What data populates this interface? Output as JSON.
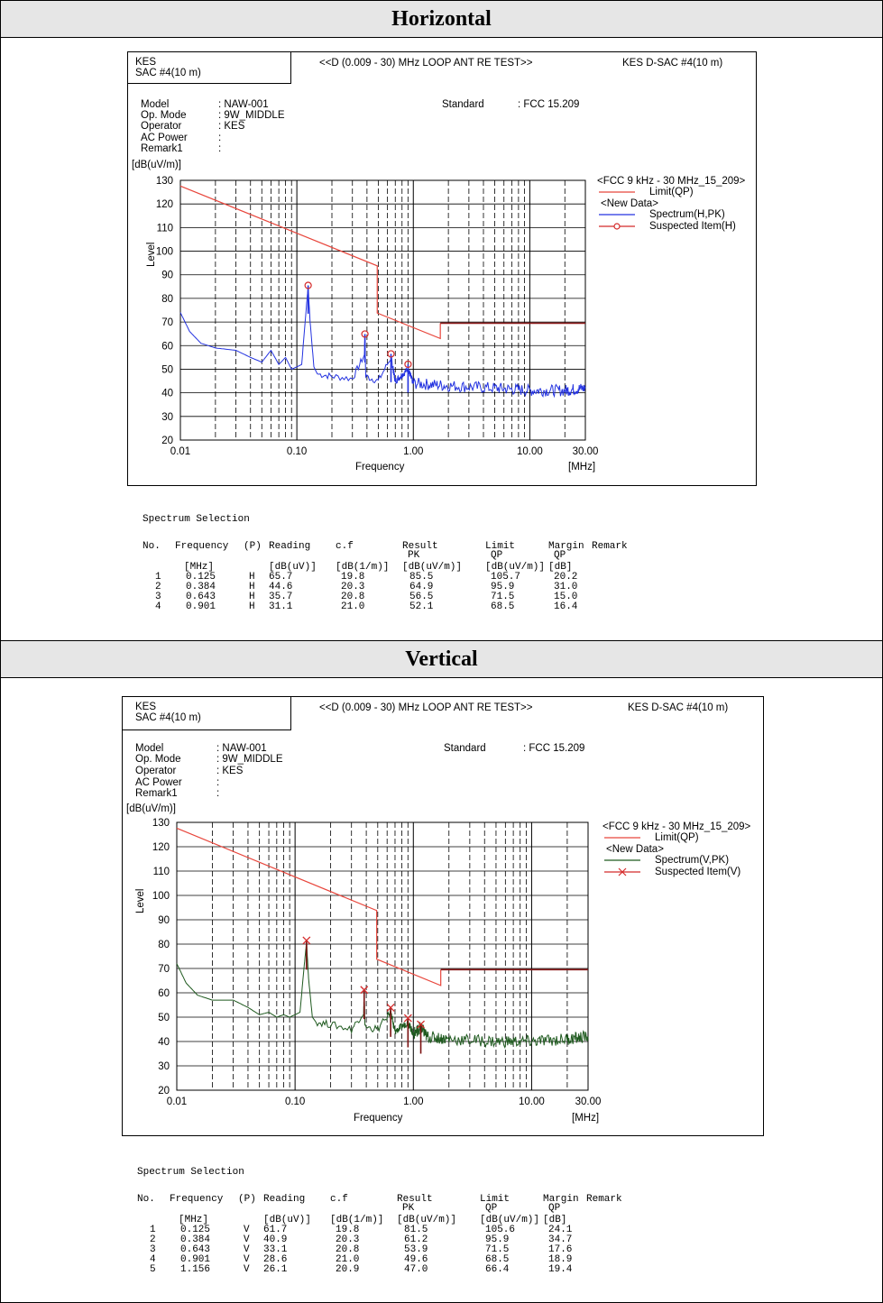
{
  "sections": [
    {
      "band_label": "Horizontal",
      "header": {
        "lab": "KES",
        "site": "SAC #4(10 m)",
        "test_title": "<<D (0.009 - 30) MHz LOOP ANT RE TEST>>",
        "right_label": "KES D-SAC #4(10 m)"
      },
      "info": {
        "model_label": "Model",
        "model_value": ": NAW-001",
        "mode_label": "Op. Mode",
        "mode_value": ": 9W_MIDDLE",
        "operator_label": "Operator",
        "operator_value": ": KES",
        "power_label": "AC Power",
        "power_value": ":",
        "remark_label": "Remark1",
        "remark_value": ":",
        "standard_label": "Standard",
        "standard_value": ": FCC 15.209"
      },
      "legend": {
        "group1": "<FCC 9 kHz - 30 MHz_15_209>",
        "limit": "Limit(QP)",
        "group2": "<New Data>",
        "spectrum": "Spectrum(H,PK)",
        "suspected": "Suspected Item(H)"
      },
      "table": {
        "title": "Spectrum Selection",
        "headers": [
          "No.",
          "Frequency",
          "(P)",
          "Reading",
          "c.f",
          "Result",
          "Limit",
          "Margin",
          "Remark"
        ],
        "subheaders": [
          "",
          "",
          "",
          "",
          "",
          "PK",
          "QP",
          "QP",
          ""
        ],
        "units": [
          "",
          "[MHz]",
          "",
          "[dB(uV)]",
          "[dB(1/m)]",
          "[dB(uV/m)]",
          "[dB(uV/m)]",
          "[dB]",
          ""
        ],
        "rows": [
          [
            "1",
            "0.125",
            "H",
            "65.7",
            "19.8",
            "85.5",
            "105.7",
            "20.2"
          ],
          [
            "2",
            "0.384",
            "H",
            "44.6",
            "20.3",
            "64.9",
            "95.9",
            "31.0"
          ],
          [
            "3",
            "0.643",
            "H",
            "35.7",
            "20.8",
            "56.5",
            "71.5",
            "15.0"
          ],
          [
            "4",
            "0.901",
            "H",
            "31.1",
            "21.0",
            "52.1",
            "68.5",
            "16.4"
          ]
        ]
      }
    },
    {
      "band_label": "Vertical",
      "header": {
        "lab": "KES",
        "site": "SAC #4(10 m)",
        "test_title": "<<D (0.009 - 30) MHz LOOP ANT RE TEST>>",
        "right_label": "KES D-SAC #4(10 m)"
      },
      "info": {
        "model_label": "Model",
        "model_value": ": NAW-001",
        "mode_label": "Op. Mode",
        "mode_value": ": 9W_MIDDLE",
        "operator_label": "Operator",
        "operator_value": ": KES",
        "power_label": "AC Power",
        "power_value": ":",
        "remark_label": "Remark1",
        "remark_value": ":",
        "standard_label": "Standard",
        "standard_value": ": FCC 15.209"
      },
      "legend": {
        "group1": "<FCC 9 kHz - 30 MHz_15_209>",
        "limit": "Limit(QP)",
        "group2": "<New Data>",
        "spectrum": "Spectrum(V,PK)",
        "suspected": "Suspected Item(V)"
      },
      "table": {
        "title": "Spectrum Selection",
        "headers": [
          "No.",
          "Frequency",
          "(P)",
          "Reading",
          "c.f",
          "Result",
          "Limit",
          "Margin",
          "Remark"
        ],
        "subheaders": [
          "",
          "",
          "",
          "",
          "",
          "PK",
          "QP",
          "QP",
          ""
        ],
        "units": [
          "",
          "[MHz]",
          "",
          "[dB(uV)]",
          "[dB(1/m)]",
          "[dB(uV/m)]",
          "[dB(uV/m)]",
          "[dB]",
          ""
        ],
        "rows": [
          [
            "1",
            "0.125",
            "V",
            "61.7",
            "19.8",
            "81.5",
            "105.6",
            "24.1"
          ],
          [
            "2",
            "0.384",
            "V",
            "40.9",
            "20.3",
            "61.2",
            "95.9",
            "34.7"
          ],
          [
            "3",
            "0.643",
            "V",
            "33.1",
            "20.8",
            "53.9",
            "71.5",
            "17.6"
          ],
          [
            "4",
            "0.901",
            "V",
            "28.6",
            "21.0",
            "49.6",
            "68.5",
            "18.9"
          ],
          [
            "5",
            "1.156",
            "V",
            "26.1",
            "20.9",
            "47.0",
            "66.4",
            "19.4"
          ]
        ]
      }
    }
  ],
  "chart_data": [
    {
      "type": "line",
      "x_scale": "log",
      "xlim": [
        0.01,
        30
      ],
      "ylim": [
        20,
        130
      ],
      "ylabel": "Level",
      "xlabel": "Frequency",
      "y_unit": "[dB(uV/m)]",
      "x_unit": "[MHz]",
      "x_ticks": [
        "0.01",
        "0.10",
        "1.00",
        "10.00",
        "30.00"
      ],
      "y_ticks": [
        "20",
        "30",
        "40",
        "50",
        "60",
        "70",
        "80",
        "90",
        "100",
        "110",
        "120",
        "130"
      ],
      "grid": true,
      "legend_position": "right",
      "colors": {
        "limit": "#e8463c",
        "spectrum": "#2433e0",
        "marker": "#d42a2a",
        "limit_dark": "#8b1a1a"
      },
      "limit_series": {
        "name": "Limit(QP)",
        "points": [
          [
            0.01,
            127.6
          ],
          [
            0.49,
            93.8
          ],
          [
            0.49,
            73.8
          ],
          [
            1.705,
            63.0
          ],
          [
            1.705,
            69.5
          ],
          [
            30,
            69.5
          ]
        ]
      },
      "spectrum_series": {
        "name": "Spectrum(H,PK)",
        "points": [
          [
            0.01,
            74
          ],
          [
            0.012,
            66
          ],
          [
            0.015,
            61
          ],
          [
            0.02,
            59
          ],
          [
            0.03,
            58
          ],
          [
            0.04,
            55
          ],
          [
            0.05,
            53
          ],
          [
            0.06,
            58
          ],
          [
            0.07,
            52
          ],
          [
            0.08,
            55
          ],
          [
            0.09,
            50
          ],
          [
            0.1,
            51
          ],
          [
            0.11,
            52
          ],
          [
            0.12,
            75
          ],
          [
            0.125,
            85
          ],
          [
            0.13,
            70
          ],
          [
            0.14,
            51
          ],
          [
            0.15,
            48
          ],
          [
            0.2,
            47
          ],
          [
            0.3,
            46
          ],
          [
            0.38,
            56
          ],
          [
            0.384,
            64
          ],
          [
            0.39,
            47
          ],
          [
            0.5,
            45
          ],
          [
            0.643,
            55
          ],
          [
            0.7,
            45
          ],
          [
            0.901,
            50
          ],
          [
            1.0,
            44
          ],
          [
            2.0,
            43
          ],
          [
            5.0,
            42
          ],
          [
            10.0,
            41
          ],
          [
            20.0,
            41
          ],
          [
            30.0,
            42
          ]
        ]
      },
      "suspected_series": {
        "name": "Suspected Item(H)",
        "marker": "circle",
        "points": [
          [
            0.125,
            85.5
          ],
          [
            0.384,
            64.9
          ],
          [
            0.643,
            56.5
          ],
          [
            0.901,
            52.1
          ]
        ]
      }
    },
    {
      "type": "line",
      "x_scale": "log",
      "xlim": [
        0.01,
        30
      ],
      "ylim": [
        20,
        130
      ],
      "ylabel": "Level",
      "xlabel": "Frequency",
      "y_unit": "[dB(uV/m)]",
      "x_unit": "[MHz]",
      "x_ticks": [
        "0.01",
        "0.10",
        "1.00",
        "10.00",
        "30.00"
      ],
      "y_ticks": [
        "20",
        "30",
        "40",
        "50",
        "60",
        "70",
        "80",
        "90",
        "100",
        "110",
        "120",
        "130"
      ],
      "grid": true,
      "legend_position": "right",
      "colors": {
        "limit": "#e8463c",
        "spectrum": "#1f5a1f",
        "marker": "#d42a2a",
        "limit_dark": "#8b1a1a"
      },
      "limit_series": {
        "name": "Limit(QP)",
        "points": [
          [
            0.01,
            127.6
          ],
          [
            0.49,
            93.8
          ],
          [
            0.49,
            73.8
          ],
          [
            1.705,
            63.0
          ],
          [
            1.705,
            69.5
          ],
          [
            30,
            69.5
          ]
        ]
      },
      "spectrum_series": {
        "name": "Spectrum(V,PK)",
        "points": [
          [
            0.01,
            72
          ],
          [
            0.012,
            64
          ],
          [
            0.015,
            59
          ],
          [
            0.02,
            57
          ],
          [
            0.03,
            57
          ],
          [
            0.04,
            54
          ],
          [
            0.05,
            51
          ],
          [
            0.06,
            52
          ],
          [
            0.07,
            50
          ],
          [
            0.08,
            51
          ],
          [
            0.09,
            50
          ],
          [
            0.1,
            51
          ],
          [
            0.11,
            52
          ],
          [
            0.12,
            72
          ],
          [
            0.125,
            81
          ],
          [
            0.13,
            66
          ],
          [
            0.14,
            50
          ],
          [
            0.15,
            48
          ],
          [
            0.2,
            47
          ],
          [
            0.3,
            45
          ],
          [
            0.38,
            52
          ],
          [
            0.384,
            60
          ],
          [
            0.39,
            46
          ],
          [
            0.5,
            45
          ],
          [
            0.643,
            52
          ],
          [
            0.7,
            44
          ],
          [
            0.901,
            48
          ],
          [
            1.0,
            43
          ],
          [
            1.156,
            46
          ],
          [
            1.3,
            42
          ],
          [
            2.0,
            41
          ],
          [
            5.0,
            40
          ],
          [
            10.0,
            40
          ],
          [
            20.0,
            41
          ],
          [
            30.0,
            42
          ]
        ]
      },
      "suspected_series": {
        "name": "Suspected Item(V)",
        "marker": "x",
        "points": [
          [
            0.125,
            81.5
          ],
          [
            0.384,
            61.2
          ],
          [
            0.643,
            53.9
          ],
          [
            0.901,
            49.6
          ],
          [
            1.156,
            47.0
          ]
        ]
      }
    }
  ]
}
